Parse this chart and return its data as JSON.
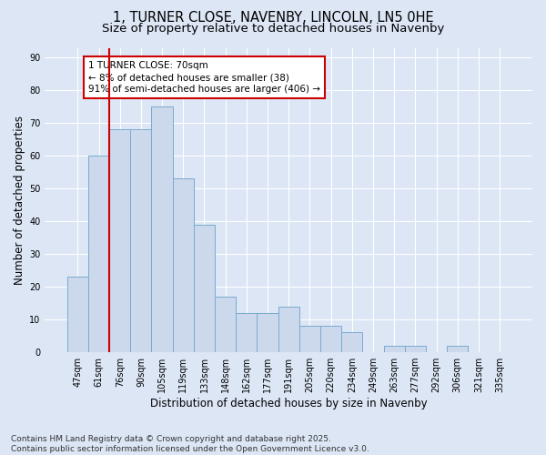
{
  "title": "1, TURNER CLOSE, NAVENBY, LINCOLN, LN5 0HE",
  "subtitle": "Size of property relative to detached houses in Navenby",
  "xlabel": "Distribution of detached houses by size in Navenby",
  "ylabel": "Number of detached properties",
  "categories": [
    "47sqm",
    "61sqm",
    "76sqm",
    "90sqm",
    "105sqm",
    "119sqm",
    "133sqm",
    "148sqm",
    "162sqm",
    "177sqm",
    "191sqm",
    "205sqm",
    "220sqm",
    "234sqm",
    "249sqm",
    "263sqm",
    "277sqm",
    "292sqm",
    "306sqm",
    "321sqm",
    "335sqm"
  ],
  "values": [
    23,
    60,
    68,
    68,
    75,
    53,
    39,
    17,
    12,
    12,
    14,
    8,
    8,
    6,
    0,
    2,
    2,
    0,
    2,
    0,
    0
  ],
  "bar_color": "#ccd9ed",
  "bar_edge_color": "#7aaad0",
  "vline_color": "#cc0000",
  "vline_x_index": 1,
  "annotation_text": "1 TURNER CLOSE: 70sqm\n← 8% of detached houses are smaller (38)\n91% of semi-detached houses are larger (406) →",
  "annotation_box_color": "#ffffff",
  "annotation_box_edge": "#cc0000",
  "ylim": [
    0,
    93
  ],
  "yticks": [
    0,
    10,
    20,
    30,
    40,
    50,
    60,
    70,
    80,
    90
  ],
  "background_color": "#dce6f5",
  "grid_color": "#ffffff",
  "footer": "Contains HM Land Registry data © Crown copyright and database right 2025.\nContains public sector information licensed under the Open Government Licence v3.0.",
  "title_fontsize": 10.5,
  "subtitle_fontsize": 9.5,
  "label_fontsize": 8.5,
  "tick_fontsize": 7,
  "annotation_fontsize": 7.5,
  "footer_fontsize": 6.5
}
